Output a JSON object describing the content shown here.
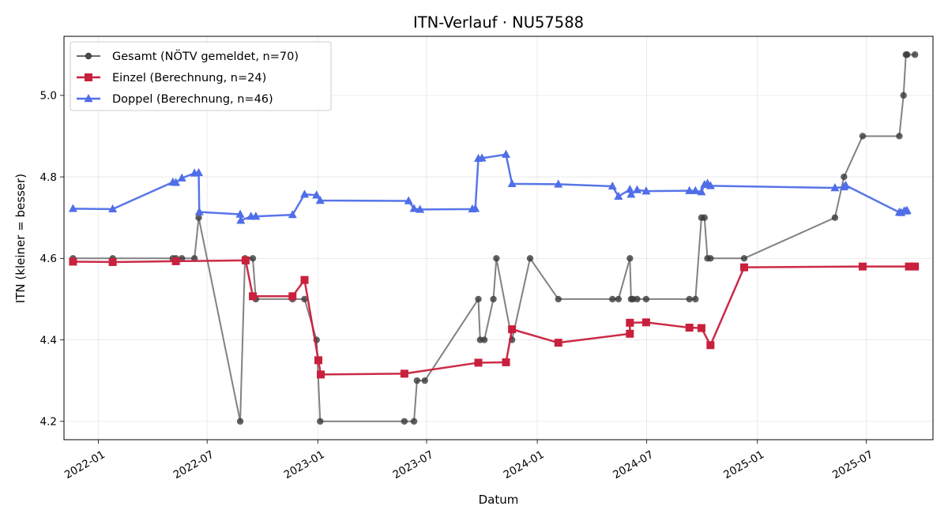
{
  "chart_data": {
    "type": "line",
    "title": "ITN-Verlauf · NU57588",
    "xlabel": "Datum",
    "ylabel": "ITN  (kleiner = besser)",
    "x_type": "date",
    "xlim": [
      "2021-11-05",
      "2025-10-20"
    ],
    "ylim": [
      4.155,
      5.145
    ],
    "x_ticks": [
      "2022-01",
      "2022-07",
      "2023-01",
      "2023-07",
      "2024-01",
      "2024-07",
      "2025-01",
      "2025-07"
    ],
    "y_ticks": [
      "4.2",
      "4.4",
      "4.6",
      "4.8",
      "5.0"
    ],
    "grid": true,
    "legend_position": "top-left",
    "series": [
      {
        "name": "Gesamt (NÖTV gemeldet, n=70)",
        "color": "#6b6b6b",
        "marker": "circle",
        "x": [
          "2021-11-20",
          "2022-01-25",
          "2022-05-05",
          "2022-05-10",
          "2022-05-20",
          "2022-06-10",
          "2022-06-17",
          "2022-08-25",
          "2022-09-02",
          "2022-09-15",
          "2022-09-20",
          "2022-11-20",
          "2022-12-10",
          "2022-12-30",
          "2023-01-05",
          "2023-05-25",
          "2023-06-10",
          "2023-06-15",
          "2023-06-28",
          "2023-09-25",
          "2023-09-28",
          "2023-10-05",
          "2023-10-20",
          "2023-10-25",
          "2023-11-20",
          "2023-12-20",
          "2024-02-05",
          "2024-05-05",
          "2024-05-15",
          "2024-06-03",
          "2024-06-05",
          "2024-06-08",
          "2024-06-15",
          "2024-06-30",
          "2024-09-10",
          "2024-09-20",
          "2024-09-30",
          "2024-10-05",
          "2024-10-10",
          "2024-10-15",
          "2024-12-10",
          "2025-05-10",
          "2025-05-25",
          "2025-06-25",
          "2025-08-25",
          "2025-09-01",
          "2025-09-05",
          "2025-09-07",
          "2025-09-20"
        ],
        "y": [
          4.6,
          4.6,
          4.6,
          4.6,
          4.6,
          4.6,
          4.7,
          4.2,
          4.6,
          4.6,
          4.5,
          4.5,
          4.5,
          4.4,
          4.2,
          4.2,
          4.2,
          4.3,
          4.3,
          4.5,
          4.4,
          4.4,
          4.5,
          4.6,
          4.4,
          4.6,
          4.5,
          4.5,
          4.5,
          4.6,
          4.5,
          4.5,
          4.5,
          4.5,
          4.5,
          4.5,
          4.7,
          4.7,
          4.6,
          4.6,
          4.6,
          4.7,
          4.8,
          4.9,
          4.9,
          5.0,
          5.1,
          5.1,
          5.1
        ]
      },
      {
        "name": "Einzel (Berechnung, n=24)",
        "color": "#c8203d",
        "marker": "square",
        "x": [
          "2021-11-20",
          "2022-01-25",
          "2022-05-10",
          "2022-09-03",
          "2022-09-15",
          "2022-11-20",
          "2022-12-10",
          "2023-01-02",
          "2023-01-06",
          "2023-05-25",
          "2023-09-25",
          "2023-11-10",
          "2023-11-20",
          "2024-02-05",
          "2024-06-03",
          "2024-06-03",
          "2024-06-30",
          "2024-09-10",
          "2024-09-30",
          "2024-10-15",
          "2024-12-10",
          "2025-06-25",
          "2025-09-10",
          "2025-09-20"
        ],
        "y": [
          4.592,
          4.591,
          4.593,
          4.595,
          4.507,
          4.507,
          4.547,
          4.35,
          4.315,
          4.317,
          4.344,
          4.345,
          4.426,
          4.393,
          4.415,
          4.442,
          4.443,
          4.43,
          4.429,
          4.387,
          4.578,
          4.58,
          4.58,
          4.58
        ]
      },
      {
        "name": "Doppel (Berechnung, n=46)",
        "color": "#4f6ee8",
        "marker": "triangle",
        "x": [
          "2021-11-20",
          "2022-01-25",
          "2022-05-05",
          "2022-05-10",
          "2022-05-20",
          "2022-06-10",
          "2022-06-17",
          "2022-06-18",
          "2022-08-25",
          "2022-08-26",
          "2022-09-12",
          "2022-09-20",
          "2022-11-20",
          "2022-12-10",
          "2022-12-30",
          "2023-01-05",
          "2023-06-01",
          "2023-06-10",
          "2023-06-20",
          "2023-09-15",
          "2023-09-20",
          "2023-09-25",
          "2023-10-01",
          "2023-11-10",
          "2023-11-20",
          "2024-02-05",
          "2024-05-05",
          "2024-05-15",
          "2024-06-03",
          "2024-06-05",
          "2024-06-15",
          "2024-06-30",
          "2024-09-10",
          "2024-09-20",
          "2024-09-30",
          "2024-10-05",
          "2024-10-10",
          "2024-10-15",
          "2025-05-10",
          "2025-05-25",
          "2025-05-28",
          "2025-08-25",
          "2025-08-28",
          "2025-09-02",
          "2025-09-05",
          "2025-09-07"
        ],
        "y": [
          4.722,
          4.721,
          4.787,
          4.786,
          4.797,
          4.809,
          4.81,
          4.714,
          4.708,
          4.693,
          4.703,
          4.703,
          4.707,
          4.757,
          4.755,
          4.742,
          4.741,
          4.722,
          4.72,
          4.721,
          4.722,
          4.845,
          4.846,
          4.855,
          4.783,
          4.782,
          4.777,
          4.752,
          4.769,
          4.757,
          4.768,
          4.765,
          4.766,
          4.766,
          4.763,
          4.781,
          4.784,
          4.778,
          4.773,
          4.775,
          4.779,
          4.713,
          4.712,
          4.716,
          4.716,
          4.717
        ]
      }
    ]
  }
}
